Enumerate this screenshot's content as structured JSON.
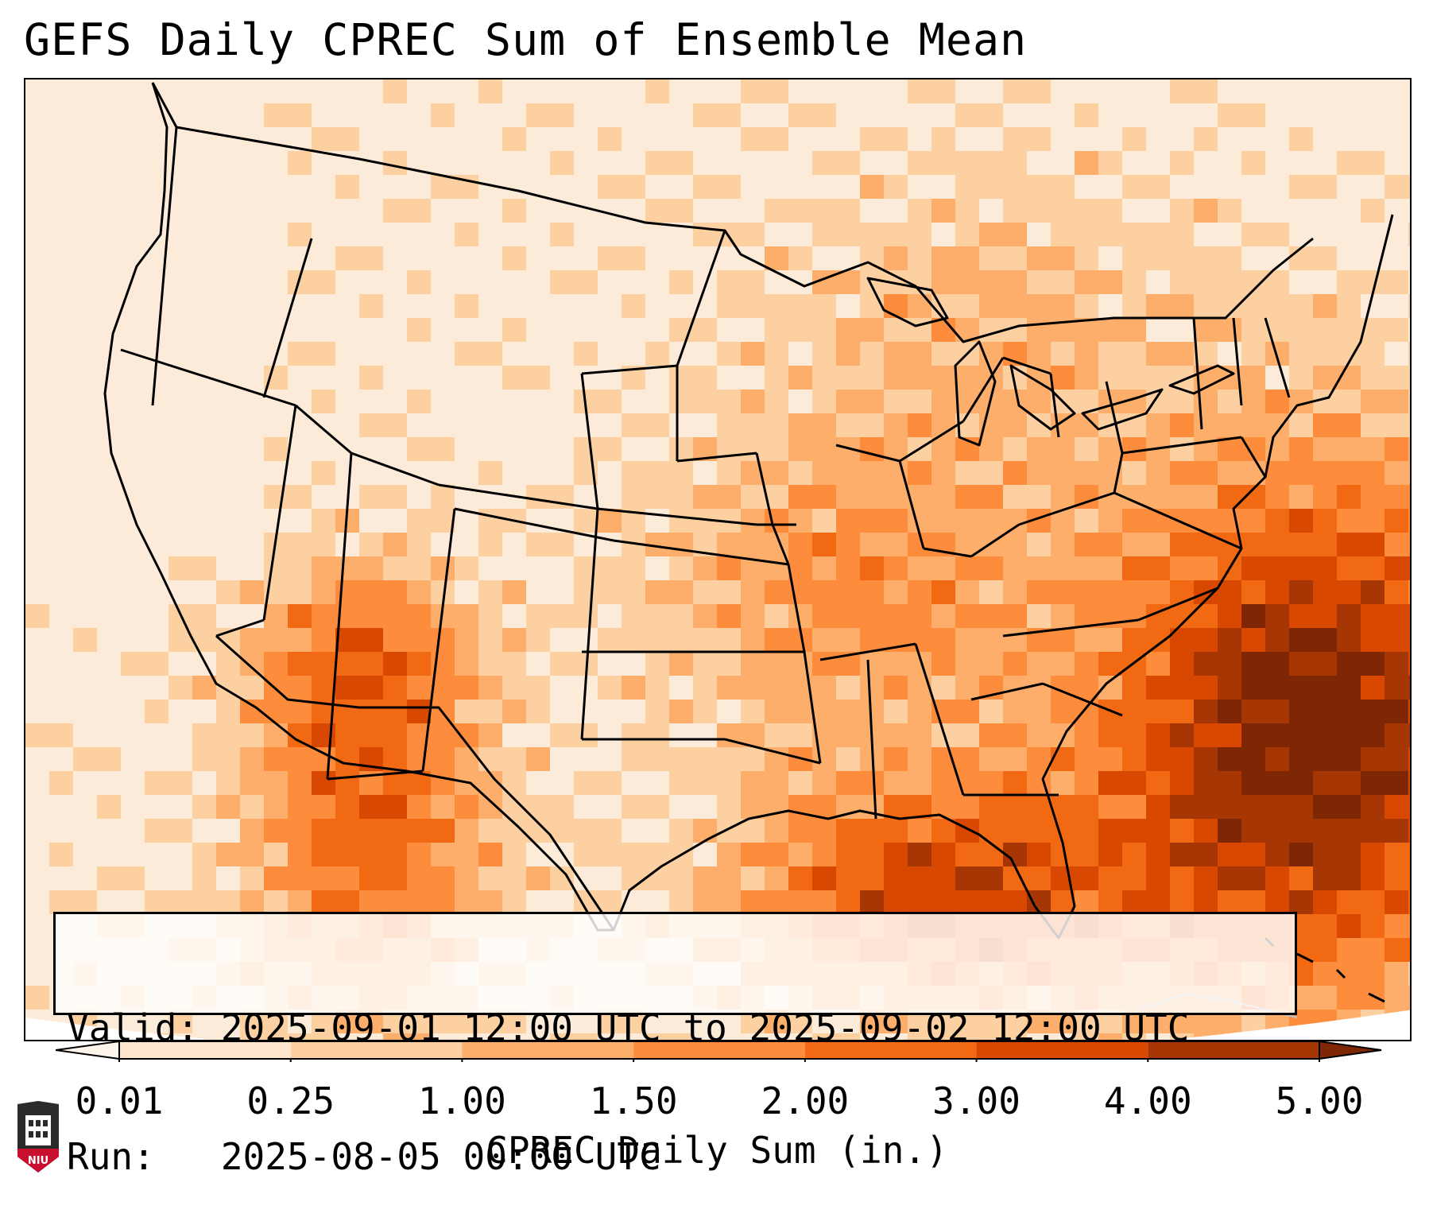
{
  "title": "GEFS Daily CPREC Sum of Ensemble Mean",
  "info": {
    "valid": "Valid: 2025-09-01 12:00 UTC to 2025-09-02 12:00 UTC",
    "run": "Run:   2025-08-05 00:00 UTC"
  },
  "colorbar": {
    "label": "CPREC Daily Sum (in.)",
    "ticks": [
      "0.01",
      "0.25",
      "1.00",
      "1.50",
      "2.00",
      "3.00",
      "4.00",
      "5.00"
    ],
    "colors": [
      "#fff5eb",
      "#fee6ce",
      "#fdd0a2",
      "#fdae6b",
      "#fd8d3c",
      "#f16913",
      "#d94801",
      "#a63603",
      "#7f2704"
    ]
  },
  "logo": {
    "text": "NIU",
    "icon": "niu-seal-icon"
  },
  "map": {
    "projection": "Lambert conformal conic, continental United States",
    "field": "precipitation shading",
    "overlay": "state and country boundaries"
  }
}
